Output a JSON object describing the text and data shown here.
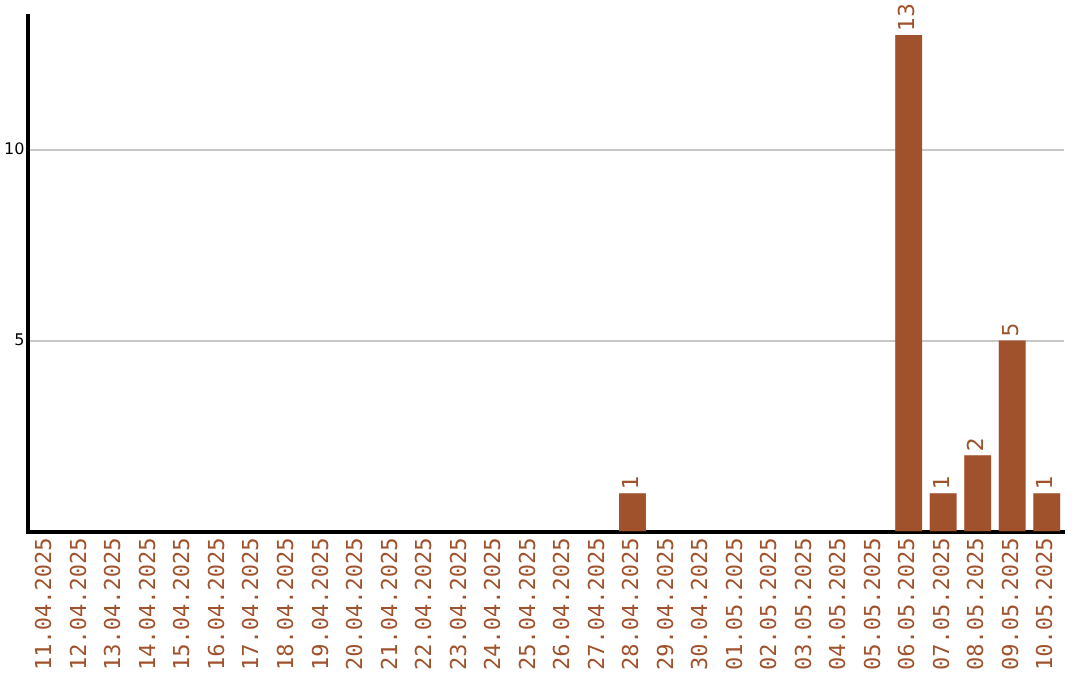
{
  "chart_data": {
    "type": "bar",
    "categories": [
      "11.04.2025",
      "12.04.2025",
      "13.04.2025",
      "14.04.2025",
      "15.04.2025",
      "16.04.2025",
      "17.04.2025",
      "18.04.2025",
      "19.04.2025",
      "20.04.2025",
      "21.04.2025",
      "22.04.2025",
      "23.04.2025",
      "24.04.2025",
      "25.04.2025",
      "26.04.2025",
      "27.04.2025",
      "28.04.2025",
      "29.04.2025",
      "30.04.2025",
      "01.05.2025",
      "02.05.2025",
      "03.05.2025",
      "04.05.2025",
      "05.05.2025",
      "06.05.2025",
      "07.05.2025",
      "08.05.2025",
      "09.05.2025",
      "10.05.2025"
    ],
    "values": [
      0,
      0,
      0,
      0,
      0,
      0,
      0,
      0,
      0,
      0,
      0,
      0,
      0,
      0,
      0,
      0,
      0,
      1,
      0,
      0,
      0,
      0,
      0,
      0,
      0,
      13,
      1,
      2,
      5,
      1
    ],
    "value_labels": [
      null,
      null,
      null,
      null,
      null,
      null,
      null,
      null,
      null,
      null,
      null,
      null,
      null,
      null,
      null,
      null,
      null,
      "1",
      null,
      null,
      null,
      null,
      null,
      null,
      null,
      "13",
      "1",
      "2",
      "5",
      "1"
    ],
    "color": "#a0522d",
    "ylim": [
      0,
      13.5
    ],
    "yticks": [
      5,
      10
    ],
    "grid": "y",
    "legend": false
  }
}
